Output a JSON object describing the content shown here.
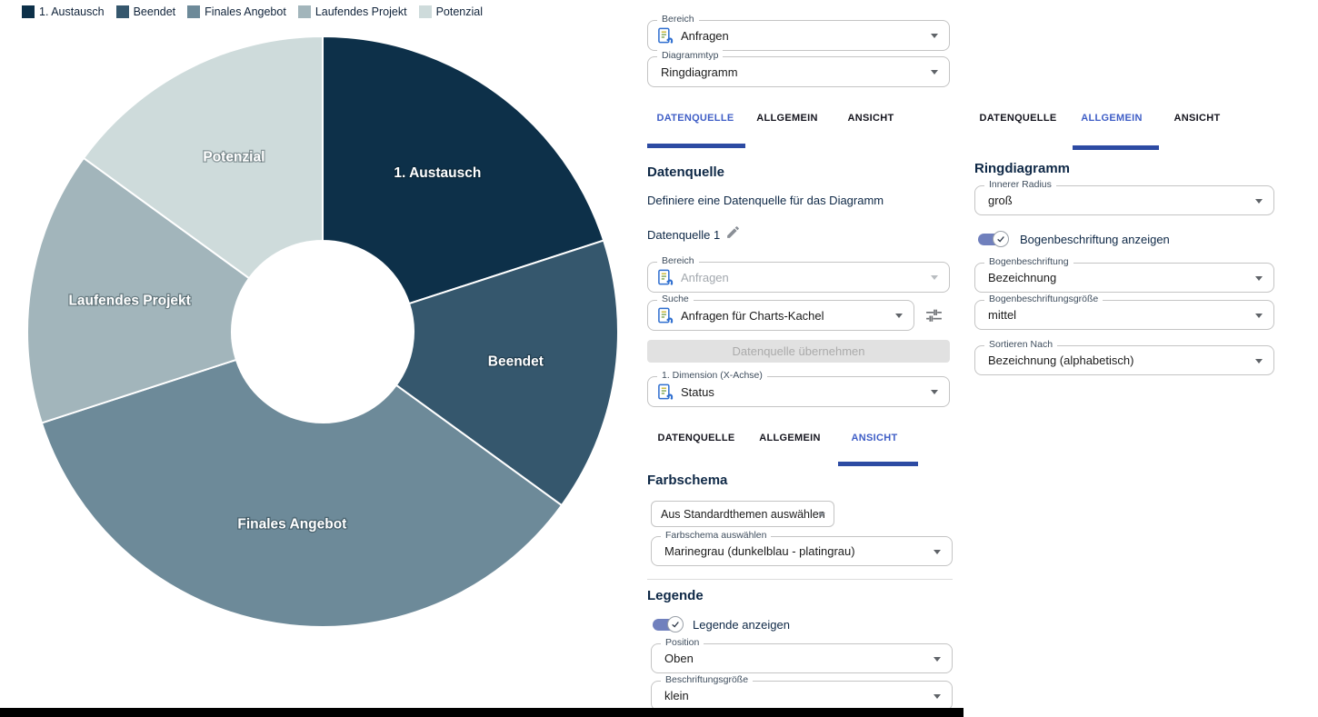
{
  "chart_data": {
    "type": "pie",
    "subtype": "donut",
    "categories": [
      "1. Austausch",
      "Beendet",
      "Finales Angebot",
      "Laufendes Projekt",
      "Potenzial"
    ],
    "values": [
      20,
      15,
      35,
      15,
      15
    ],
    "unit": "percent_of_ring",
    "colors": [
      "#0d3049",
      "#35576d",
      "#6d8a99",
      "#a2b5bb",
      "#cedbdb"
    ],
    "start_angle_deg": 0,
    "direction": "clockwise",
    "inner_radius_px": 100,
    "outer_radius_px": 325,
    "label_radius_px": 215,
    "label_color": "#ffffff",
    "legend_position": "top",
    "segment_labels_shown": true
  },
  "tab_labels": {
    "datenquelle": "DATENQUELLE",
    "allgemein": "ALLGEMEIN",
    "ansicht": "ANSICHT"
  },
  "config_header": {
    "bereich": {
      "label": "Bereich",
      "value": "Anfragen"
    },
    "diagrammtyp": {
      "label": "Diagrammtyp",
      "value": "Ringdiagramm"
    }
  },
  "datasource_panel": {
    "heading": "Datenquelle",
    "description": "Definiere eine Datenquelle für das Diagramm",
    "datasource_name": "Datenquelle 1",
    "bereich": {
      "label": "Bereich",
      "value": "Anfragen"
    },
    "suche": {
      "label": "Suche",
      "value": "Anfragen für Charts-Kachel"
    },
    "apply_button": "Datenquelle übernehmen",
    "dimension": {
      "label": "1. Dimension (X-Achse)",
      "value": "Status"
    }
  },
  "ansicht_panel": {
    "farbschema_heading": "Farbschema",
    "theme_source_select": "Aus Standardthemen auswählen",
    "farbschema_select": {
      "label": "Farbschema auswählen",
      "value": "Marinegrau (dunkelblau - platingrau)"
    },
    "legende_heading": "Legende",
    "legende_toggle_label": "Legende anzeigen",
    "position": {
      "label": "Position",
      "value": "Oben"
    },
    "beschriftungsgroesse": {
      "label": "Beschriftungsgröße",
      "value": "klein"
    }
  },
  "allgemein_panel": {
    "heading": "Ringdiagramm",
    "innerer_radius": {
      "label": "Innerer Radius",
      "value": "groß"
    },
    "bogen_toggle_label": "Bogenbeschriftung anzeigen",
    "bogenbeschriftung": {
      "label": "Bogenbeschriftung",
      "value": "Bezeichnung"
    },
    "bogenbeschriftungsgroesse": {
      "label": "Bogenbeschriftungsgröße",
      "value": "mittel"
    },
    "sortieren": {
      "label": "Sortieren Nach",
      "value": "Bezeichnung (alphabetisch)"
    }
  },
  "ui_colors": {
    "tab_active": "#3f5ec6",
    "tab_indicator": "#2d4ba3",
    "toggle_on": "#7080bd",
    "heading_text": "#0e2846"
  }
}
